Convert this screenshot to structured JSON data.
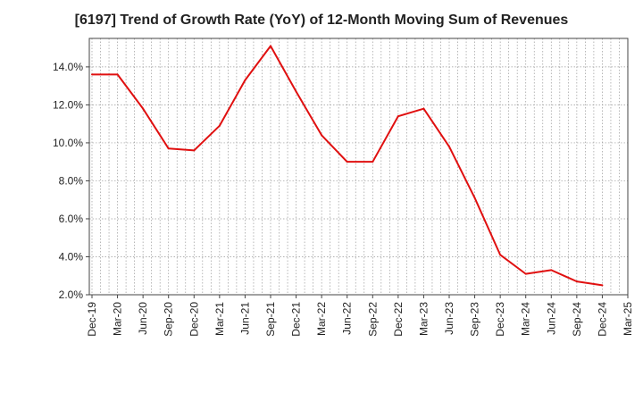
{
  "chart_data": {
    "type": "line",
    "title": "[6197]  Trend of Growth Rate (YoY) of 12-Month Moving Sum of Revenues",
    "xlabel": "",
    "ylabel": "",
    "x": [
      "Dec-19",
      "Mar-20",
      "Jun-20",
      "Sep-20",
      "Dec-20",
      "Mar-21",
      "Jun-21",
      "Sep-21",
      "Dec-21",
      "Mar-22",
      "Jun-22",
      "Sep-22",
      "Dec-22",
      "Mar-23",
      "Jun-23",
      "Sep-23",
      "Dec-23",
      "Mar-24",
      "Jun-24",
      "Sep-24",
      "Dec-24",
      "Mar-25"
    ],
    "series": [
      {
        "color": "#e01010",
        "values": [
          13.6,
          13.6,
          11.8,
          9.7,
          9.6,
          10.9,
          13.3,
          15.1,
          12.7,
          10.4,
          9.0,
          9.0,
          11.4,
          11.8,
          9.8,
          7.1,
          4.1,
          3.1,
          3.3,
          2.7,
          2.5,
          null
        ]
      }
    ],
    "ylim": [
      2.0,
      15.5
    ],
    "yticks": [
      2.0,
      4.0,
      6.0,
      8.0,
      10.0,
      12.0,
      14.0
    ],
    "ytick_labels": [
      "2.0%",
      "4.0%",
      "6.0%",
      "8.0%",
      "10.0%",
      "12.0%",
      "14.0%"
    ],
    "xtick_labels": [
      "Dec-19",
      "Mar-20",
      "Jun-20",
      "Sep-20",
      "Dec-20",
      "Mar-21",
      "Jun-21",
      "Sep-21",
      "Dec-21",
      "Mar-22",
      "Jun-22",
      "Sep-22",
      "Dec-22",
      "Mar-23",
      "Jun-23",
      "Sep-23",
      "Dec-23",
      "Mar-24",
      "Jun-24",
      "Sep-24",
      "Dec-24",
      "Mar-25"
    ],
    "grid": true,
    "legend": "none"
  }
}
